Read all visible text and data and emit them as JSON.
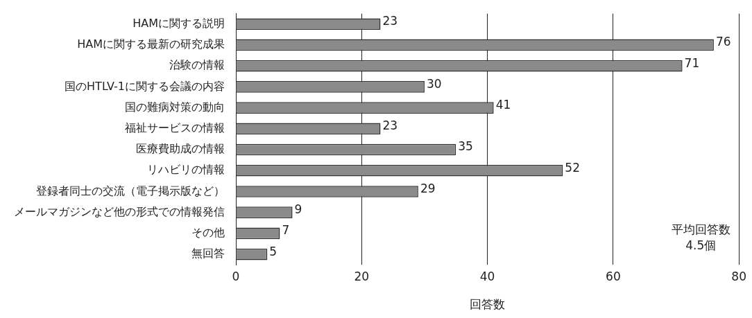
{
  "chart_data": {
    "type": "bar",
    "orientation": "horizontal",
    "xlabel": "回答数",
    "categories": [
      "HAMに関する説明",
      "HAMに関する最新の研究成果",
      "治験の情報",
      "国のHTLV-1に関する会議の内容",
      "国の難病対策の動向",
      "福祉サービスの情報",
      "医療費助成の情報",
      "リハビリの情報",
      "登録者同士の交流（電子掲示版など）",
      "メールマガジンなど他の形式での情報発信",
      "その他",
      "無回答"
    ],
    "values": [
      23,
      76,
      71,
      30,
      41,
      23,
      35,
      52,
      29,
      9,
      7,
      5
    ],
    "color": "#8a8a8a",
    "xlim": [
      0,
      80
    ],
    "xticks": [
      0,
      20,
      40,
      60,
      80
    ],
    "grid": "x",
    "data_labels": true,
    "annotations": [
      "平均回答数\n4.5個"
    ]
  }
}
